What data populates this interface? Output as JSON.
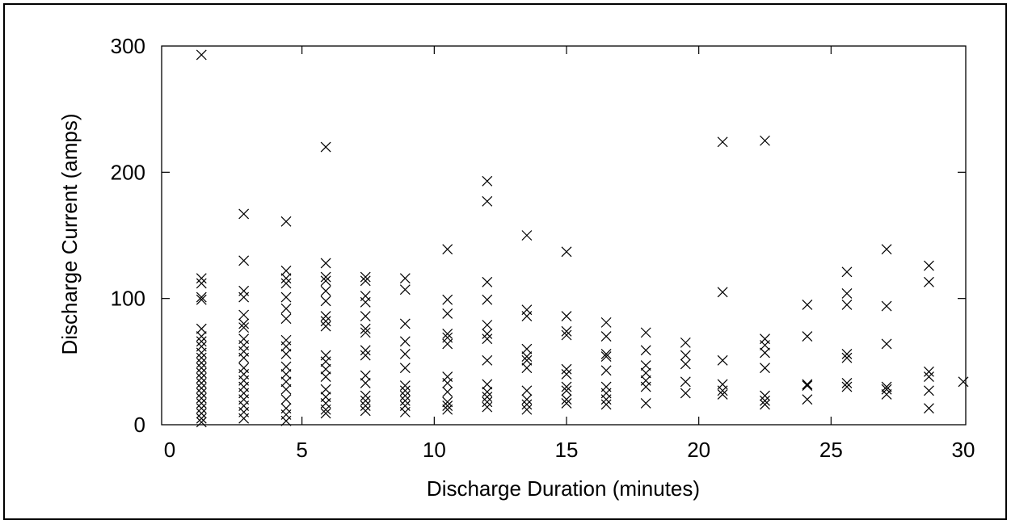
{
  "chart_data": {
    "type": "scatter",
    "title": "",
    "xlabel": "Discharge Duration (minutes)",
    "ylabel": "Discharge Current (amps)",
    "xlim": [
      0,
      30
    ],
    "ylim": [
      0,
      300
    ],
    "xticks": [
      "0",
      "5",
      "10",
      "15",
      "20",
      "25",
      "30"
    ],
    "yticks": [
      "0",
      "100",
      "200",
      "300"
    ],
    "grid": false,
    "marker": "x",
    "color": "#000000",
    "series": [
      {
        "values": [
          [
            1.2,
            293
          ],
          [
            1.2,
            116
          ],
          [
            1.2,
            112
          ],
          [
            1.2,
            101
          ],
          [
            1.2,
            99
          ],
          [
            1.2,
            76
          ],
          [
            1.2,
            70
          ],
          [
            1.2,
            66
          ],
          [
            1.2,
            62
          ],
          [
            1.2,
            57
          ],
          [
            1.2,
            53
          ],
          [
            1.2,
            49
          ],
          [
            1.2,
            45
          ],
          [
            1.2,
            41
          ],
          [
            1.2,
            37
          ],
          [
            1.2,
            33
          ],
          [
            1.2,
            29
          ],
          [
            1.2,
            25
          ],
          [
            1.2,
            21
          ],
          [
            1.2,
            17
          ],
          [
            1.2,
            13
          ],
          [
            1.2,
            9
          ],
          [
            1.2,
            5
          ],
          [
            1.2,
            2
          ],
          [
            2.8,
            167
          ],
          [
            2.8,
            130
          ],
          [
            2.8,
            106
          ],
          [
            2.8,
            101
          ],
          [
            2.8,
            87
          ],
          [
            2.8,
            80
          ],
          [
            2.8,
            77
          ],
          [
            2.8,
            68
          ],
          [
            2.8,
            63
          ],
          [
            2.8,
            58
          ],
          [
            2.8,
            53
          ],
          [
            2.8,
            45
          ],
          [
            2.8,
            40
          ],
          [
            2.8,
            35
          ],
          [
            2.8,
            30
          ],
          [
            2.8,
            25
          ],
          [
            2.8,
            20
          ],
          [
            2.8,
            15
          ],
          [
            2.8,
            10
          ],
          [
            2.8,
            5
          ],
          [
            4.4,
            161
          ],
          [
            4.4,
            122
          ],
          [
            4.4,
            116
          ],
          [
            4.4,
            112
          ],
          [
            4.4,
            101
          ],
          [
            4.4,
            92
          ],
          [
            4.4,
            84
          ],
          [
            4.4,
            67
          ],
          [
            4.4,
            62
          ],
          [
            4.4,
            56
          ],
          [
            4.4,
            46
          ],
          [
            4.4,
            40
          ],
          [
            4.4,
            34
          ],
          [
            4.4,
            28
          ],
          [
            4.4,
            20
          ],
          [
            4.4,
            13
          ],
          [
            4.4,
            8
          ],
          [
            4.4,
            3
          ],
          [
            5.9,
            220
          ],
          [
            5.9,
            128
          ],
          [
            5.9,
            117
          ],
          [
            5.9,
            114
          ],
          [
            5.9,
            106
          ],
          [
            5.9,
            98
          ],
          [
            5.9,
            86
          ],
          [
            5.9,
            82
          ],
          [
            5.9,
            78
          ],
          [
            5.9,
            55
          ],
          [
            5.9,
            50
          ],
          [
            5.9,
            44
          ],
          [
            5.9,
            38
          ],
          [
            5.9,
            28
          ],
          [
            5.9,
            22
          ],
          [
            5.9,
            17
          ],
          [
            5.9,
            12
          ],
          [
            5.9,
            9
          ],
          [
            7.4,
            117
          ],
          [
            7.4,
            114
          ],
          [
            7.4,
            102
          ],
          [
            7.4,
            97
          ],
          [
            7.4,
            86
          ],
          [
            7.4,
            76
          ],
          [
            7.4,
            73
          ],
          [
            7.4,
            59
          ],
          [
            7.4,
            55
          ],
          [
            7.4,
            39
          ],
          [
            7.4,
            33
          ],
          [
            7.4,
            23
          ],
          [
            7.4,
            19
          ],
          [
            7.4,
            15
          ],
          [
            7.4,
            11
          ],
          [
            8.9,
            116
          ],
          [
            8.9,
            107
          ],
          [
            8.9,
            80
          ],
          [
            8.9,
            66
          ],
          [
            8.9,
            56
          ],
          [
            8.9,
            45
          ],
          [
            8.9,
            31
          ],
          [
            8.9,
            27
          ],
          [
            8.9,
            23
          ],
          [
            8.9,
            19
          ],
          [
            8.9,
            15
          ],
          [
            8.9,
            10
          ],
          [
            10.5,
            139
          ],
          [
            10.5,
            99
          ],
          [
            10.5,
            88
          ],
          [
            10.5,
            72
          ],
          [
            10.5,
            69
          ],
          [
            10.5,
            64
          ],
          [
            10.5,
            38
          ],
          [
            10.5,
            33
          ],
          [
            10.5,
            26
          ],
          [
            10.5,
            18
          ],
          [
            10.5,
            15
          ],
          [
            10.5,
            12
          ],
          [
            12.0,
            193
          ],
          [
            12.0,
            177
          ],
          [
            12.0,
            113
          ],
          [
            12.0,
            99
          ],
          [
            12.0,
            79
          ],
          [
            12.0,
            72
          ],
          [
            12.0,
            68
          ],
          [
            12.0,
            51
          ],
          [
            12.0,
            32
          ],
          [
            12.0,
            26
          ],
          [
            12.0,
            22
          ],
          [
            12.0,
            18
          ],
          [
            12.0,
            14
          ],
          [
            13.5,
            150
          ],
          [
            13.5,
            91
          ],
          [
            13.5,
            86
          ],
          [
            13.5,
            60
          ],
          [
            13.5,
            54
          ],
          [
            13.5,
            51
          ],
          [
            13.5,
            45
          ],
          [
            13.5,
            27
          ],
          [
            13.5,
            20
          ],
          [
            13.5,
            16
          ],
          [
            13.5,
            12
          ],
          [
            15.0,
            137
          ],
          [
            15.0,
            86
          ],
          [
            15.0,
            74
          ],
          [
            15.0,
            71
          ],
          [
            15.0,
            44
          ],
          [
            15.0,
            40
          ],
          [
            15.0,
            30
          ],
          [
            15.0,
            27
          ],
          [
            15.0,
            20
          ],
          [
            15.0,
            17
          ],
          [
            16.5,
            81
          ],
          [
            16.5,
            70
          ],
          [
            16.5,
            56
          ],
          [
            16.5,
            54
          ],
          [
            16.5,
            43
          ],
          [
            16.5,
            30
          ],
          [
            16.5,
            25
          ],
          [
            16.5,
            20
          ],
          [
            16.5,
            16
          ],
          [
            18.0,
            73
          ],
          [
            18.0,
            59
          ],
          [
            18.0,
            47
          ],
          [
            18.0,
            41
          ],
          [
            18.0,
            35
          ],
          [
            18.0,
            30
          ],
          [
            18.0,
            17
          ],
          [
            19.5,
            65
          ],
          [
            19.5,
            55
          ],
          [
            19.5,
            48
          ],
          [
            19.5,
            34
          ],
          [
            19.5,
            25
          ],
          [
            20.9,
            224
          ],
          [
            20.9,
            105
          ],
          [
            20.9,
            51
          ],
          [
            20.9,
            32
          ],
          [
            20.9,
            27
          ],
          [
            20.9,
            24
          ],
          [
            22.5,
            225
          ],
          [
            22.5,
            68
          ],
          [
            22.5,
            63
          ],
          [
            22.5,
            57
          ],
          [
            22.5,
            45
          ],
          [
            22.5,
            23
          ],
          [
            22.5,
            19
          ],
          [
            22.5,
            16
          ],
          [
            24.1,
            95
          ],
          [
            24.1,
            70
          ],
          [
            24.1,
            32
          ],
          [
            24.1,
            31
          ],
          [
            24.1,
            20
          ],
          [
            25.6,
            121
          ],
          [
            25.6,
            104
          ],
          [
            25.6,
            95
          ],
          [
            25.6,
            56
          ],
          [
            25.6,
            53
          ],
          [
            25.6,
            33
          ],
          [
            25.6,
            30
          ],
          [
            27.1,
            139
          ],
          [
            27.1,
            94
          ],
          [
            27.1,
            64
          ],
          [
            27.1,
            30
          ],
          [
            27.1,
            28
          ],
          [
            27.1,
            24
          ],
          [
            28.7,
            126
          ],
          [
            28.7,
            113
          ],
          [
            28.7,
            42
          ],
          [
            28.7,
            38
          ],
          [
            28.7,
            27
          ],
          [
            28.7,
            13
          ],
          [
            30.0,
            34
          ]
        ]
      }
    ]
  }
}
